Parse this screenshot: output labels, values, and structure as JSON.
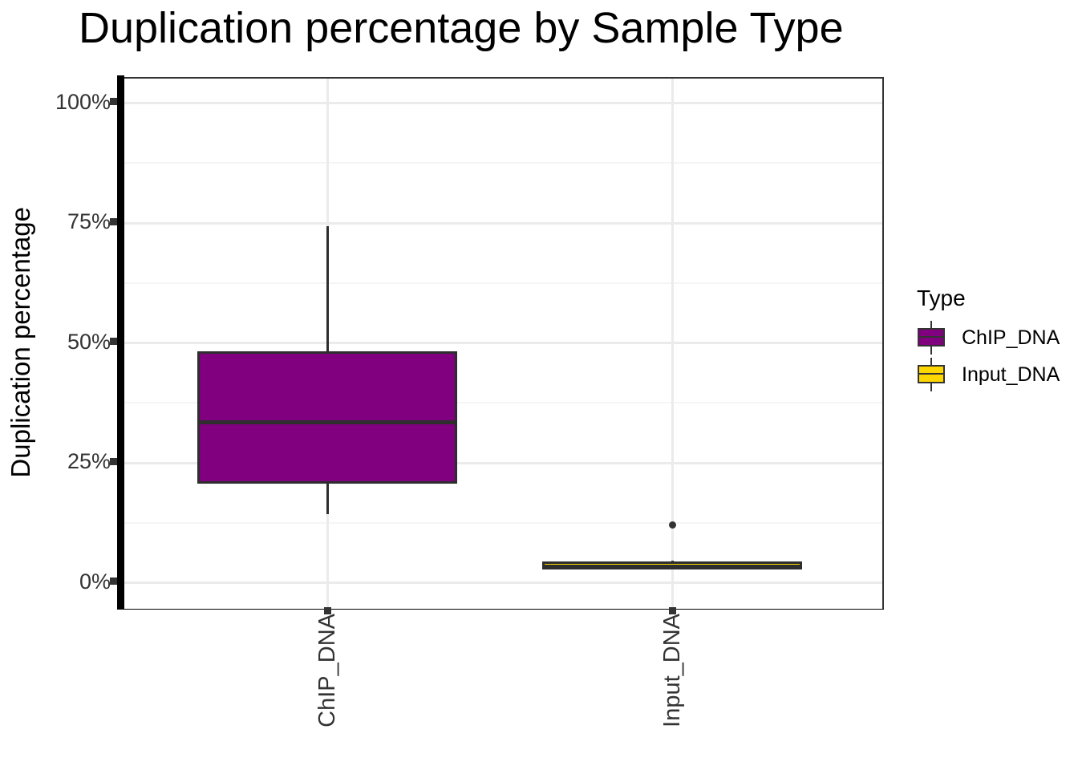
{
  "chart_data": {
    "type": "boxplot",
    "title": "Duplication percentage by Sample Type",
    "ylabel": "Duplication percentage",
    "xlabel": "",
    "ylim": [
      0,
      100
    ],
    "grid": true,
    "y_ticks": [
      {
        "value": 0,
        "label": "0%"
      },
      {
        "value": 25,
        "label": "25%"
      },
      {
        "value": 50,
        "label": "50%"
      },
      {
        "value": 75,
        "label": "75%"
      },
      {
        "value": 100,
        "label": "100%"
      }
    ],
    "y_minor_ticks": [
      12.5,
      37.5,
      62.5,
      87.5
    ],
    "categories": [
      "ChIP_DNA",
      "Input_DNA"
    ],
    "series": [
      {
        "name": "ChIP_DNA",
        "color": "#800080",
        "whisker_low": 14.3,
        "q1": 20.7,
        "median": 33.5,
        "q3": 48.2,
        "whisker_high": 74.3,
        "outliers": []
      },
      {
        "name": "Input_DNA",
        "color": "#FFD700",
        "whisker_low": 2.8,
        "q1": 2.8,
        "median": 3.4,
        "q3": 4.4,
        "whisker_high": 4.6,
        "outliers": [
          12.1
        ]
      }
    ],
    "legend": {
      "title": "Type",
      "position": "right",
      "items": [
        {
          "label": "ChIP_DNA",
          "color": "#800080"
        },
        {
          "label": "Input_DNA",
          "color": "#FFD700"
        }
      ]
    },
    "colors": {
      "axis_line": "#000000",
      "tick_text": "#333333",
      "grid_major": "#ebebeb",
      "grid_minor": "#f5f5f5",
      "box_border": "#2e2e2e",
      "outlier": "#333333",
      "title_text": "#000000"
    }
  }
}
